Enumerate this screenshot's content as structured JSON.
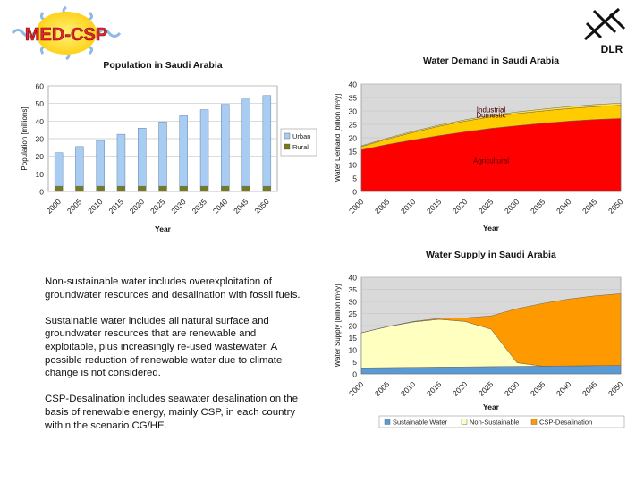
{
  "logos": {
    "med_csp": "MED-CSP",
    "dlr": "DLR"
  },
  "notes": [
    "Non-sustainable water includes overexploitation of groundwater resources and desalination with fossil fuels.",
    "Sustainable water includes all natural surface and groundwater resources that are renewable and exploitable, plus increasingly re-used wastewater. A possible reduction of renewable water due to climate change is not considered.",
    "CSP-Desalination includes seawater desalination on the basis of renewable energy, mainly CSP, in each country within the scenario CG/HE."
  ],
  "chart_data": [
    {
      "id": "population",
      "type": "bar",
      "stacked": true,
      "title": "Population in Saudi Arabia",
      "xlabel": "Year",
      "ylabel": "Population [millions]",
      "ylim": [
        0,
        60
      ],
      "yticks": [
        0,
        10,
        20,
        30,
        40,
        50,
        60
      ],
      "grid": true,
      "legend_position": "right",
      "categories": [
        "2000",
        "2005",
        "2010",
        "2015",
        "2020",
        "2025",
        "2030",
        "2035",
        "2040",
        "2045",
        "2050"
      ],
      "series": [
        {
          "name": "Rural",
          "color": "#7a7a1c",
          "values": [
            3,
            3,
            3,
            3,
            3,
            3,
            3,
            3,
            3,
            3,
            3
          ]
        },
        {
          "name": "Urban",
          "color": "#a9cdf2",
          "values": [
            19,
            22.5,
            26,
            29.5,
            33,
            36.5,
            40,
            43.5,
            46.5,
            49.5,
            51.5
          ]
        }
      ]
    },
    {
      "id": "water_demand",
      "type": "area",
      "stacked": true,
      "title": "Water Demand in Saudi Arabia",
      "xlabel": "Year",
      "ylabel": "Water Demand [billion m³/y]",
      "ylim": [
        0,
        40
      ],
      "yticks": [
        0,
        5,
        10,
        15,
        20,
        25,
        30,
        35,
        40
      ],
      "grid": true,
      "x": [
        "2000",
        "2005",
        "2010",
        "2015",
        "2020",
        "2025",
        "2030",
        "2035",
        "2040",
        "2045",
        "2050"
      ],
      "series": [
        {
          "name": "Agricultural",
          "color": "#ff0000",
          "values": [
            15.5,
            17.5,
            19.2,
            20.8,
            22.2,
            23.5,
            24.5,
            25.4,
            26.2,
            26.8,
            27.2
          ]
        },
        {
          "name": "Domestic",
          "color": "#ffcc00",
          "values": [
            1.2,
            2.0,
            2.8,
            3.5,
            4.0,
            4.3,
            4.5,
            4.6,
            4.7,
            4.8,
            4.9
          ]
        },
        {
          "name": "Industrial",
          "color": "#ffe040",
          "values": [
            0.3,
            0.35,
            0.4,
            0.45,
            0.5,
            0.55,
            0.6,
            0.65,
            0.7,
            0.75,
            0.8
          ]
        }
      ],
      "annotations": [
        "Industrial",
        "Domestic",
        "Agricultural"
      ]
    },
    {
      "id": "water_supply",
      "type": "area",
      "stacked": true,
      "title": "Water Supply in Saudi Arabia",
      "xlabel": "Year",
      "ylabel": "Water Supply [billion m³/y]",
      "ylim": [
        0,
        40
      ],
      "yticks": [
        0,
        5,
        10,
        15,
        20,
        25,
        30,
        35,
        40
      ],
      "grid": true,
      "legend_position": "bottom",
      "x": [
        "2000",
        "2005",
        "2010",
        "2015",
        "2020",
        "2025",
        "2030",
        "2035",
        "2040",
        "2045",
        "2050"
      ],
      "series": [
        {
          "name": "Sustainable Water",
          "color": "#5b9bd5",
          "values": [
            2.5,
            2.6,
            2.7,
            2.8,
            2.9,
            3.0,
            3.1,
            3.2,
            3.3,
            3.4,
            3.5
          ]
        },
        {
          "name": "Non-Sustainable",
          "color": "#ffffc0",
          "values": [
            14.5,
            16.9,
            18.8,
            19.8,
            18.8,
            15.5,
            1.5,
            0,
            0,
            0,
            0
          ]
        },
        {
          "name": "CSP-Desalination",
          "color": "#ff9900",
          "values": [
            0,
            0.1,
            0.2,
            0.4,
            1.5,
            5.5,
            22.4,
            26.0,
            27.7,
            28.9,
            29.7
          ]
        }
      ]
    }
  ]
}
